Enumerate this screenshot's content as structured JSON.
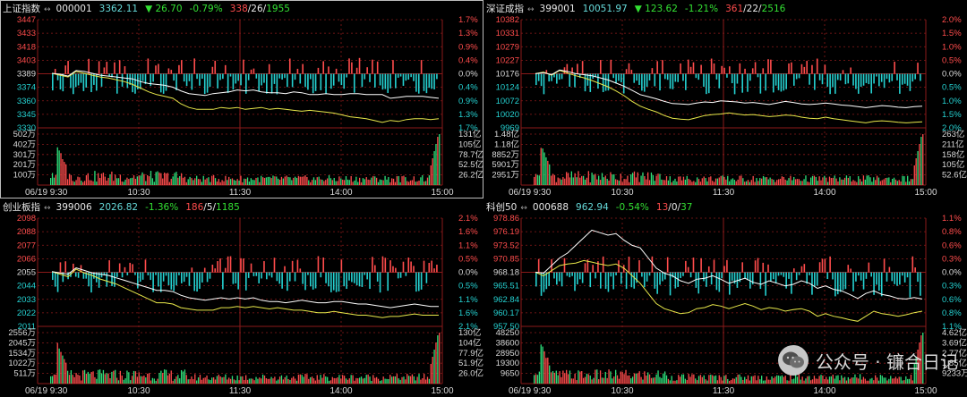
{
  "colors": {
    "up": "#ff4c4c",
    "down": "#25d1d1",
    "price_line": "#ffffff",
    "avg_line": "#e8e84a",
    "grid": "#8b1a1a",
    "axis_text": "#d9d9d9"
  },
  "time_labels": [
    "06/19 9:30",
    "10:30",
    "11:30",
    "14:00",
    "15:00"
  ],
  "watermark": {
    "text": "公众号 · 镰合日记",
    "icon": "wechat-logo-icon"
  },
  "chart_data": [
    {
      "type": "line",
      "name": "上证指数",
      "code": "000001",
      "last": "3362.11",
      "change": "26.70",
      "change_pct": "-0.79%",
      "breadth": {
        "up": "338",
        "flat": "26",
        "down": "1955"
      },
      "active": true,
      "ylim": [
        3330,
        3447
      ],
      "y_ticks": [
        "3447",
        "3433",
        "3418",
        "3403",
        "3389",
        "3374",
        "3360",
        "3345",
        "3330"
      ],
      "pct_ticks": [
        "1.7%",
        "1.3%",
        "0.9%",
        "0.4%",
        "0.0%",
        "0.4%",
        "0.9%",
        "1.3%",
        "1.7%"
      ],
      "vol_ticks": [
        "502万",
        "402万",
        "301万",
        "201万",
        "100万"
      ],
      "amt_ticks": [
        "131亿",
        "105亿",
        "78.7亿",
        "52.5亿",
        "26.2亿"
      ],
      "price": [
        3389,
        3388,
        3386,
        3392,
        3391,
        3389,
        3387,
        3386,
        3385,
        3384,
        3383,
        3380,
        3378,
        3377,
        3376,
        3374,
        3370,
        3367,
        3366,
        3365,
        3367,
        3368,
        3369,
        3371,
        3370,
        3371,
        3369,
        3368,
        3368,
        3367,
        3369,
        3368,
        3366,
        3366,
        3367,
        3366,
        3366,
        3367,
        3367,
        3366,
        3366,
        3366,
        3362,
        3363,
        3364,
        3364,
        3364,
        3363,
        3362
      ],
      "avg": [
        3389,
        3387,
        3385,
        3391,
        3389,
        3387,
        3385,
        3384,
        3382,
        3380,
        3377,
        3373,
        3369,
        3366,
        3364,
        3362,
        3356,
        3352,
        3350,
        3350,
        3350,
        3352,
        3351,
        3352,
        3350,
        3351,
        3352,
        3350,
        3351,
        3350,
        3349,
        3348,
        3349,
        3348,
        3347,
        3346,
        3344,
        3342,
        3341,
        3340,
        3338,
        3336,
        3338,
        3337,
        3339,
        3340,
        3340,
        3339,
        3340
      ]
    },
    {
      "type": "line",
      "name": "深证成指",
      "code": "399001",
      "last": "10051.97",
      "change": "123.62",
      "change_pct": "-1.21%",
      "breadth": {
        "up": "361",
        "flat": "22",
        "down": "2516"
      },
      "active": false,
      "ylim": [
        9969,
        10382
      ],
      "y_ticks": [
        "10382",
        "10331",
        "10279",
        "10227",
        "10176",
        "10124",
        "10072",
        "10020",
        "9969"
      ],
      "pct_ticks": [
        "2.0%",
        "1.5%",
        "1.0%",
        "0.5%",
        "0.0%",
        "0.5%",
        "1.0%",
        "1.5%",
        "2.0%"
      ],
      "vol_ticks": [
        "1.48亿",
        "1.18亿",
        "8852万",
        "5901万",
        "2951万"
      ],
      "amt_ticks": [
        "263亿",
        "211亿",
        "158亿",
        "105亿",
        "52.6亿"
      ],
      "price": [
        10176,
        10180,
        10172,
        10190,
        10184,
        10176,
        10172,
        10168,
        10160,
        10152,
        10140,
        10128,
        10112,
        10096,
        10088,
        10080,
        10070,
        10062,
        10060,
        10058,
        10064,
        10068,
        10066,
        10072,
        10070,
        10068,
        10064,
        10066,
        10062,
        10058,
        10064,
        10070,
        10066,
        10060,
        10058,
        10060,
        10064,
        10060,
        10056,
        10054,
        10050,
        10046,
        10050,
        10054,
        10052,
        10048,
        10046,
        10050,
        10052
      ],
      "avg": [
        10176,
        10182,
        10170,
        10188,
        10178,
        10168,
        10160,
        10150,
        10138,
        10126,
        10110,
        10092,
        10070,
        10052,
        10040,
        10030,
        10016,
        10006,
        10002,
        10000,
        10008,
        10016,
        10020,
        10022,
        10026,
        10022,
        10018,
        10020,
        10016,
        10012,
        10014,
        10018,
        10016,
        10010,
        10006,
        10004,
        10010,
        10004,
        10000,
        9996,
        9992,
        9988,
        9994,
        9996,
        9994,
        9990,
        9988,
        9990,
        9992
      ]
    },
    {
      "type": "line",
      "name": "创业板指",
      "code": "399006",
      "last": "2026.82",
      "change": "",
      "change_pct": "-1.36%",
      "breadth": {
        "up": "186",
        "flat": "5",
        "down": "1185"
      },
      "active": false,
      "ylim": [
        2011,
        2098
      ],
      "y_ticks": [
        "2098",
        "2088",
        "2077",
        "2066",
        "2055",
        "2044",
        "2033",
        "2022",
        "2011"
      ],
      "pct_ticks": [
        "2.1%",
        "1.6%",
        "1.1%",
        "0.5%",
        "0.0%",
        "0.5%",
        "1.1%",
        "1.6%",
        "2.1%"
      ],
      "vol_ticks": [
        "2556万",
        "2045万",
        "1534万",
        "1022万",
        "511万"
      ],
      "amt_ticks": [
        "130亿",
        "104亿",
        "77.9亿",
        "51.9亿",
        "26.0亿"
      ],
      "price": [
        2055,
        2054,
        2053,
        2058,
        2056,
        2054,
        2053,
        2052,
        2050,
        2048,
        2046,
        2044,
        2042,
        2040,
        2040,
        2039,
        2036,
        2034,
        2033,
        2032,
        2033,
        2034,
        2033,
        2034,
        2033,
        2034,
        2032,
        2031,
        2031,
        2030,
        2031,
        2032,
        2031,
        2030,
        2030,
        2031,
        2031,
        2030,
        2029,
        2029,
        2028,
        2027,
        2026,
        2027,
        2028,
        2029,
        2028,
        2027,
        2027
      ],
      "avg": [
        2055,
        2053,
        2051,
        2057,
        2054,
        2052,
        2049,
        2047,
        2045,
        2042,
        2039,
        2036,
        2033,
        2030,
        2030,
        2029,
        2026,
        2025,
        2024,
        2024,
        2024,
        2026,
        2026,
        2027,
        2026,
        2027,
        2026,
        2025,
        2026,
        2025,
        2024,
        2024,
        2023,
        2022,
        2022,
        2023,
        2022,
        2021,
        2020,
        2020,
        2019,
        2018,
        2019,
        2019,
        2020,
        2021,
        2020,
        2020,
        2020
      ]
    },
    {
      "type": "line",
      "name": "科创50",
      "code": "000688",
      "last": "962.94",
      "change": "",
      "change_pct": "-0.54%",
      "breadth": {
        "up": "13",
        "flat": "0",
        "down": "37"
      },
      "active": false,
      "ylim": [
        957.5,
        978.86
      ],
      "y_ticks": [
        "978.86",
        "976.19",
        "973.52",
        "970.85",
        "968.18",
        "965.51",
        "962.84",
        "960.17",
        "957.50"
      ],
      "pct_ticks": [
        "1.1%",
        "0.8%",
        "0.6%",
        "0.3%",
        "0.0%",
        "0.3%",
        "0.6%",
        "0.8%",
        "1.1%"
      ],
      "vol_ticks": [
        "48250",
        "38600",
        "28950",
        "19300",
        "9650"
      ],
      "amt_ticks": [
        "4.62亿",
        "3.69亿",
        "2.77亿",
        "1.85亿",
        "9233万"
      ],
      "price": [
        968.2,
        968.0,
        969.5,
        971.0,
        972.0,
        973.5,
        975.0,
        976.5,
        976.0,
        975.5,
        975.8,
        974.5,
        973.5,
        973.0,
        971.0,
        969.0,
        968.0,
        967.5,
        966.5,
        966.0,
        966.8,
        967.0,
        967.5,
        966.8,
        966.0,
        966.5,
        967.0,
        966.2,
        965.8,
        966.5,
        966.0,
        965.5,
        965.8,
        966.5,
        966.0,
        965.0,
        965.5,
        964.8,
        964.5,
        963.8,
        963.0,
        964.0,
        964.5,
        963.8,
        963.5,
        963.0,
        962.9,
        963.2,
        962.9
      ],
      "avg": [
        968.2,
        967.5,
        968.5,
        969.5,
        969.8,
        970.0,
        970.5,
        970.2,
        969.8,
        969.5,
        969.8,
        969.0,
        967.5,
        966.0,
        964.0,
        962.0,
        961.0,
        960.5,
        960.0,
        960.2,
        961.0,
        961.2,
        961.8,
        961.5,
        961.0,
        961.5,
        962.0,
        961.5,
        960.8,
        961.2,
        961.0,
        960.5,
        960.8,
        961.0,
        960.5,
        959.5,
        960.0,
        959.5,
        959.2,
        958.8,
        958.5,
        959.5,
        960.5,
        960.0,
        959.8,
        959.5,
        959.8,
        960.2,
        960.5
      ]
    }
  ]
}
